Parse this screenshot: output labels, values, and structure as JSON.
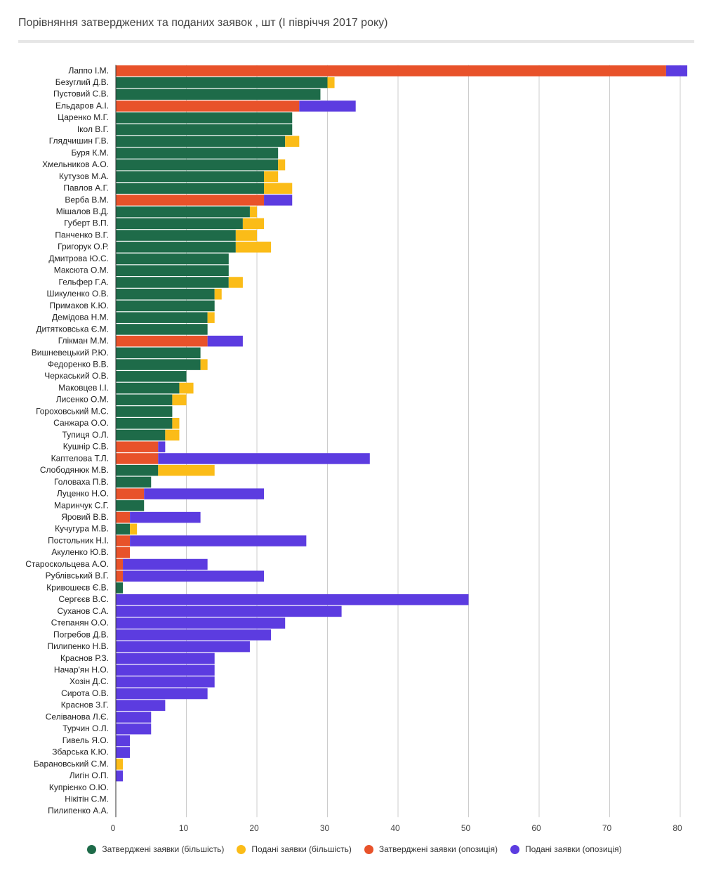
{
  "title": "Порівняння затверджених та поданих заявок , шт (І півріччя 2017 року)",
  "colors": {
    "approved_majority": "#1e6b49",
    "submitted_majority": "#fbbc18",
    "approved_opposition": "#e8522a",
    "submitted_opposition": "#5c3ce0"
  },
  "legend": [
    {
      "label": "Затверджені заявки (більшість)",
      "color": "#1e6b49",
      "icon": "circle-icon"
    },
    {
      "label": "Подані заявки (більшість)",
      "color": "#fbbc18",
      "icon": "circle-icon"
    },
    {
      "label": "Затверджені заявки (опозиція)",
      "color": "#e8522a",
      "icon": "circle-icon"
    },
    {
      "label": "Подані заявки (опозиція)",
      "color": "#5c3ce0",
      "icon": "circle-icon"
    }
  ],
  "chart_data": {
    "type": "bar",
    "orientation": "horizontal",
    "stacked": true,
    "xlim": [
      0,
      80
    ],
    "xticks": [
      0,
      10,
      20,
      30,
      40,
      50,
      60,
      70,
      80
    ],
    "grid": true,
    "legend_position": "bottom",
    "categories": [
      "Лаппо І.М.",
      "Безуглий Д.В.",
      "Пустовий С.В.",
      "Ельдаров А.І.",
      "Царенко М.Г.",
      "Ікол В.Г.",
      "Глядчишин Г.В.",
      "Буря К.М.",
      "Хмельников А.О.",
      "Кутузов М.А.",
      "Павлов А.Г.",
      "Верба В.М.",
      "Мішалов В.Д.",
      "Губерт В.П.",
      "Панченко В.Г.",
      "Григорук О.Р.",
      "Дмитрова Ю.С.",
      "Максюта О.М.",
      "Гельфер Г.А.",
      "Шикуленко О.В.",
      "Примаков К.Ю.",
      "Демідова Н.М.",
      "Дитятковська Є.М.",
      "Глікман М.М.",
      "Вишневецький Р.Ю.",
      "Федоренко В.В.",
      "Черкаський О.В.",
      "Маковцев І.І.",
      "Лисенко О.М.",
      "Гороховський М.С.",
      "Санжара О.О.",
      "Тупиця О.Л.",
      "Кушнір С.В.",
      "Каптелова Т.Л.",
      "Слободянюк М.В.",
      "Головаха П.В.",
      "Луценко Н.О.",
      "Маринчук С.Г.",
      "Яровий В.В.",
      "Кучугура М.В.",
      "Постольник Н.І.",
      "Акуленко Ю.В.",
      "Староскольцева А.О.",
      "Рублівський В.Г.",
      "Кривошеєв Є.В.",
      "Сергєєв В.С.",
      "Суханов С.А.",
      "Степанян О.О.",
      "Погребов Д.В.",
      "Пилипенко Н.В.",
      "Краснов Р.З.",
      "Начар'ян Н.О.",
      "Хозін Д.С.",
      "Сирота О.В.",
      "Краснов З.Г.",
      "Селіванова Л.Є.",
      "Турчин О.Л.",
      "Гивель Я.О.",
      "Збарська К.Ю.",
      "Барановський С.М.",
      "Лигін О.П.",
      "Купрієнко О.Ю.",
      "Нікітін С.М.",
      "Пилипенко А.А."
    ],
    "series": [
      {
        "name": "Затверджені заявки (більшість)",
        "values": [
          0,
          30,
          29,
          0,
          25,
          25,
          24,
          23,
          23,
          21,
          21,
          0,
          19,
          18,
          17,
          17,
          16,
          16,
          16,
          14,
          14,
          13,
          13,
          0,
          12,
          12,
          10,
          9,
          8,
          8,
          8,
          7,
          0,
          0,
          6,
          5,
          0,
          4,
          0,
          2,
          0,
          0,
          0,
          0,
          1,
          0,
          0,
          0,
          0,
          0,
          0,
          0,
          0,
          0,
          0,
          0,
          0,
          0,
          0,
          0,
          0,
          0,
          0,
          0
        ]
      },
      {
        "name": "Подані заявки (більшість)",
        "values": [
          0,
          1,
          0,
          0,
          0,
          0,
          2,
          0,
          1,
          2,
          4,
          0,
          1,
          3,
          3,
          5,
          0,
          0,
          2,
          1,
          0,
          1,
          0,
          0,
          0,
          1,
          0,
          2,
          2,
          0,
          1,
          2,
          0,
          0,
          8,
          0,
          0,
          0,
          0,
          1,
          0,
          0,
          0,
          0,
          0,
          0,
          0,
          0,
          0,
          0,
          0,
          0,
          0,
          0,
          0,
          0,
          0,
          0,
          0,
          1,
          0,
          0,
          0,
          0
        ]
      },
      {
        "name": "Затверджені заявки (опозиція)",
        "values": [
          78,
          0,
          0,
          26,
          0,
          0,
          0,
          0,
          0,
          0,
          0,
          21,
          0,
          0,
          0,
          0,
          0,
          0,
          0,
          0,
          0,
          0,
          0,
          13,
          0,
          0,
          0,
          0,
          0,
          0,
          0,
          0,
          6,
          6,
          0,
          0,
          4,
          0,
          2,
          0,
          2,
          2,
          1,
          1,
          0,
          0,
          0,
          0,
          0,
          0,
          0,
          0,
          0,
          0,
          0,
          0,
          0,
          0,
          0,
          0,
          0,
          0,
          0,
          0
        ]
      },
      {
        "name": "Подані заявки (опозиція)",
        "values": [
          3,
          0,
          0,
          8,
          0,
          0,
          0,
          0,
          0,
          0,
          0,
          4,
          0,
          0,
          0,
          0,
          0,
          0,
          0,
          0,
          0,
          0,
          0,
          5,
          0,
          0,
          0,
          0,
          0,
          0,
          0,
          0,
          1,
          30,
          0,
          0,
          17,
          0,
          10,
          0,
          25,
          0,
          12,
          20,
          0,
          50,
          32,
          24,
          22,
          19,
          14,
          14,
          14,
          13,
          7,
          5,
          5,
          2,
          2,
          0,
          1,
          0,
          0,
          0
        ]
      }
    ]
  }
}
